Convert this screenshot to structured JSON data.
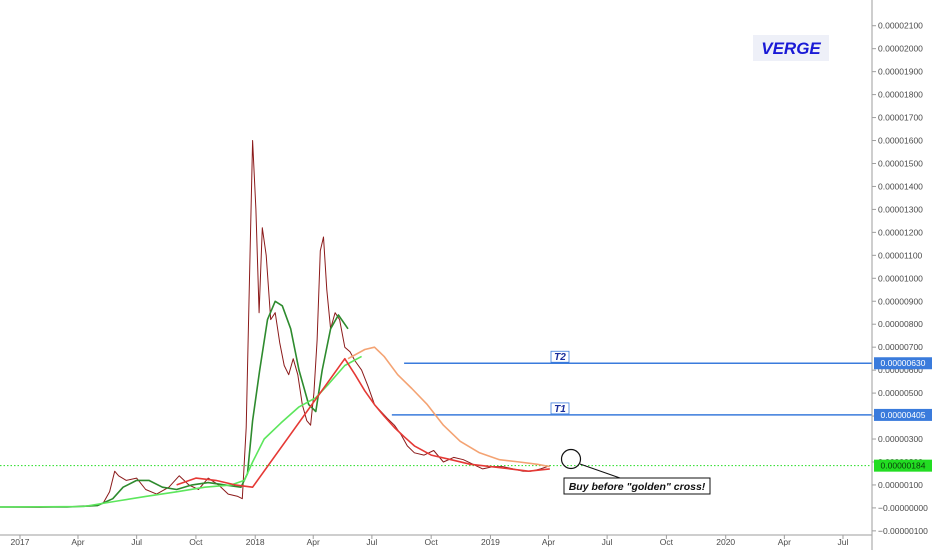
{
  "chart_data": {
    "type": "line",
    "title": "VERGE",
    "x_axis": {
      "tick_labels": [
        "2017",
        "Apr",
        "Jul",
        "Oct",
        "2018",
        "Apr",
        "Jul",
        "Oct",
        "2019",
        "Apr",
        "Jul",
        "Oct",
        "2020",
        "Apr",
        "Jul"
      ],
      "start": "2016-12-01",
      "end": "2020-08-15"
    },
    "y_axis": {
      "tick_values": [
        -1e-06,
        0.0,
        1e-06,
        2e-06,
        3e-06,
        4e-06,
        5e-06,
        6e-06,
        7e-06,
        8e-06,
        9e-06,
        1e-05,
        1.1e-05,
        1.2e-05,
        1.3e-05,
        1.4e-05,
        1.5e-05,
        1.6e-05,
        1.7e-05,
        1.8e-05,
        1.9e-05,
        2e-05,
        2.1e-05
      ],
      "tick_labels": [
        "−0.00000100",
        "−0.00000000",
        "0.00000100",
        "0.00000200",
        "0.00000300",
        "0.00000400",
        "0.00000500",
        "0.00000600",
        "0.00000700",
        "0.00000800",
        "0.00000900",
        "0.00001000",
        "0.00001100",
        "0.00001200",
        "0.00001300",
        "0.00001400",
        "0.00001500",
        "0.00001600",
        "0.00001700",
        "0.00001800",
        "0.00001900",
        "0.00002000",
        "0.00002100"
      ],
      "ylim": [
        -1.18e-06,
        2.212e-05
      ]
    },
    "series": [
      {
        "role": "price",
        "color": "#8b1a1a",
        "x": [
          "2016-12-01",
          "2017-02-01",
          "2017-03-15",
          "2017-04-20",
          "2017-05-10",
          "2017-05-20",
          "2017-05-28",
          "2017-06-03",
          "2017-06-15",
          "2017-07-01",
          "2017-07-15",
          "2017-08-01",
          "2017-08-20",
          "2017-09-05",
          "2017-09-20",
          "2017-10-05",
          "2017-10-20",
          "2017-11-05",
          "2017-11-20",
          "2017-12-05",
          "2017-12-12",
          "2017-12-18",
          "2017-12-23",
          "2017-12-28",
          "2018-01-02",
          "2018-01-07",
          "2018-01-12",
          "2018-01-18",
          "2018-01-25",
          "2018-02-01",
          "2018-02-08",
          "2018-02-15",
          "2018-02-22",
          "2018-03-01",
          "2018-03-08",
          "2018-03-15",
          "2018-03-22",
          "2018-03-28",
          "2018-04-02",
          "2018-04-07",
          "2018-04-12",
          "2018-04-17",
          "2018-04-22",
          "2018-04-28",
          "2018-05-05",
          "2018-05-12",
          "2018-05-20",
          "2018-05-28",
          "2018-06-05",
          "2018-06-15",
          "2018-06-25",
          "2018-07-05",
          "2018-07-15",
          "2018-07-25",
          "2018-08-05",
          "2018-08-15",
          "2018-08-25",
          "2018-09-05",
          "2018-09-20",
          "2018-10-05",
          "2018-10-20",
          "2018-11-05",
          "2018-11-20",
          "2018-12-05",
          "2018-12-20",
          "2019-01-05",
          "2019-01-20",
          "2019-02-05",
          "2019-02-20",
          "2019-03-05",
          "2019-03-20",
          "2019-04-03"
        ],
        "y": [
          4e-08,
          3e-08,
          5e-08,
          8e-08,
          2e-07,
          7e-07,
          1.6e-06,
          1.4e-06,
          1.2e-06,
          1.3e-06,
          8e-07,
          6e-07,
          9e-07,
          1.4e-06,
          1e-06,
          8e-07,
          1.3e-06,
          1e-06,
          6e-07,
          5e-07,
          4e-07,
          3.5e-06,
          9.8e-06,
          1.6e-05,
          1.3e-05,
          8.5e-06,
          1.22e-05,
          1.1e-05,
          8.2e-06,
          8.5e-06,
          7.2e-06,
          6.2e-06,
          5.8e-06,
          6.5e-06,
          5.8e-06,
          4.5e-06,
          3.8e-06,
          3.6e-06,
          5e-06,
          7.3e-06,
          1.12e-05,
          1.18e-05,
          9.5e-06,
          7.8e-06,
          8.5e-06,
          8.2e-06,
          7e-06,
          6.8e-06,
          6.4e-06,
          6e-06,
          5.3e-06,
          4.5e-06,
          4.2e-06,
          3.9e-06,
          3.6e-06,
          3.2e-06,
          2.7e-06,
          2.4e-06,
          2.3e-06,
          2.5e-06,
          2e-06,
          2.2e-06,
          2.1e-06,
          1.9e-06,
          1.7e-06,
          1.8e-06,
          1.8e-06,
          1.7e-06,
          1.6e-06,
          1.6e-06,
          1.7e-06,
          1.84e-06
        ]
      },
      {
        "role": "ma-dark-green",
        "color": "#2e8b2e",
        "x": [
          "2016-12-01",
          "2017-03-15",
          "2017-05-01",
          "2017-05-25",
          "2017-06-10",
          "2017-07-01",
          "2017-07-20",
          "2017-08-10",
          "2017-09-01",
          "2017-09-25",
          "2017-10-20",
          "2017-11-15",
          "2017-12-10",
          "2017-12-20",
          "2017-12-28",
          "2018-01-08",
          "2018-01-20",
          "2018-02-01",
          "2018-02-12",
          "2018-02-25",
          "2018-03-10",
          "2018-03-25",
          "2018-04-05",
          "2018-04-15",
          "2018-04-28",
          "2018-05-10",
          "2018-05-25"
        ],
        "y": [
          4e-08,
          4e-08,
          1e-07,
          4e-07,
          9e-07,
          1.2e-06,
          1.2e-06,
          9e-07,
          8e-07,
          1e-06,
          1.1e-06,
          1e-06,
          9e-07,
          1.5e-06,
          3.8e-06,
          6e-06,
          8.2e-06,
          9e-06,
          8.8e-06,
          7.8e-06,
          6e-06,
          4.5e-06,
          4.2e-06,
          6e-06,
          7.8e-06,
          8.4e-06,
          7.8e-06
        ]
      },
      {
        "role": "ma-light-green",
        "color": "#5ce65c",
        "x": [
          "2016-12-01",
          "2017-04-10",
          "2017-06-01",
          "2017-07-15",
          "2017-09-01",
          "2017-10-15",
          "2017-11-25",
          "2017-12-15",
          "2017-12-28",
          "2018-01-15",
          "2018-02-10",
          "2018-03-10",
          "2018-04-05",
          "2018-04-25",
          "2018-05-20",
          "2018-06-15"
        ],
        "y": [
          4e-08,
          6e-08,
          3e-07,
          5e-07,
          7e-07,
          9e-07,
          1e-06,
          1.2e-06,
          2e-06,
          3e-06,
          3.7e-06,
          4.4e-06,
          4.8e-06,
          5.4e-06,
          6.2e-06,
          6.6e-06
        ]
      },
      {
        "role": "ma-red",
        "color": "#e53935",
        "x": [
          "2017-09-01",
          "2017-10-01",
          "2017-11-01",
          "2017-12-01",
          "2017-12-28",
          "2018-05-20",
          "2018-06-05",
          "2018-06-20",
          "2018-07-05",
          "2018-07-20",
          "2018-08-05",
          "2018-08-20",
          "2018-09-05",
          "2018-10-01",
          "2018-11-01",
          "2018-12-01",
          "2019-01-01",
          "2019-02-01",
          "2019-03-01",
          "2019-04-03"
        ],
        "y": [
          1e-06,
          1.3e-06,
          1.2e-06,
          1e-06,
          9e-07,
          6.5e-06,
          5.8e-06,
          5.1e-06,
          4.5e-06,
          4e-06,
          3.5e-06,
          3.1e-06,
          2.7e-06,
          2.3e-06,
          2.1e-06,
          1.9e-06,
          1.8e-06,
          1.7e-06,
          1.6e-06,
          1.7e-06
        ]
      },
      {
        "role": "ma-orange",
        "color": "#f4a373",
        "x": [
          "2018-05-25",
          "2018-06-20",
          "2018-07-05",
          "2018-07-20",
          "2018-08-10",
          "2018-09-01",
          "2018-09-25",
          "2018-10-20",
          "2018-11-15",
          "2018-12-15",
          "2019-01-15",
          "2019-02-15",
          "2019-03-15",
          "2019-04-03"
        ],
        "y": [
          6.5e-06,
          6.9e-06,
          7e-06,
          6.6e-06,
          5.8e-06,
          5.2e-06,
          4.5e-06,
          3.6e-06,
          2.9e-06,
          2.4e-06,
          2.1e-06,
          2e-06,
          1.9e-06,
          1.8e-06
        ]
      }
    ],
    "horizontal_lines": [
      {
        "label": "T2",
        "value": 6.3e-06,
        "price_tag": "0.00000630",
        "color": "#3a7bdc",
        "from": "2018-08-20"
      },
      {
        "label": "T1",
        "value": 4.05e-06,
        "price_tag": "0.00000405",
        "color": "#3a7bdc",
        "from": "2018-08-01"
      }
    ],
    "current_price": {
      "value": 1.84e-06,
      "price_tag": "0.00000184",
      "color": "#22dd22"
    },
    "annotation": {
      "text": "Buy before \"golden\" cross!",
      "at": "2019-04-03",
      "value": 1.84e-06
    },
    "grid": false,
    "legend": "none"
  }
}
